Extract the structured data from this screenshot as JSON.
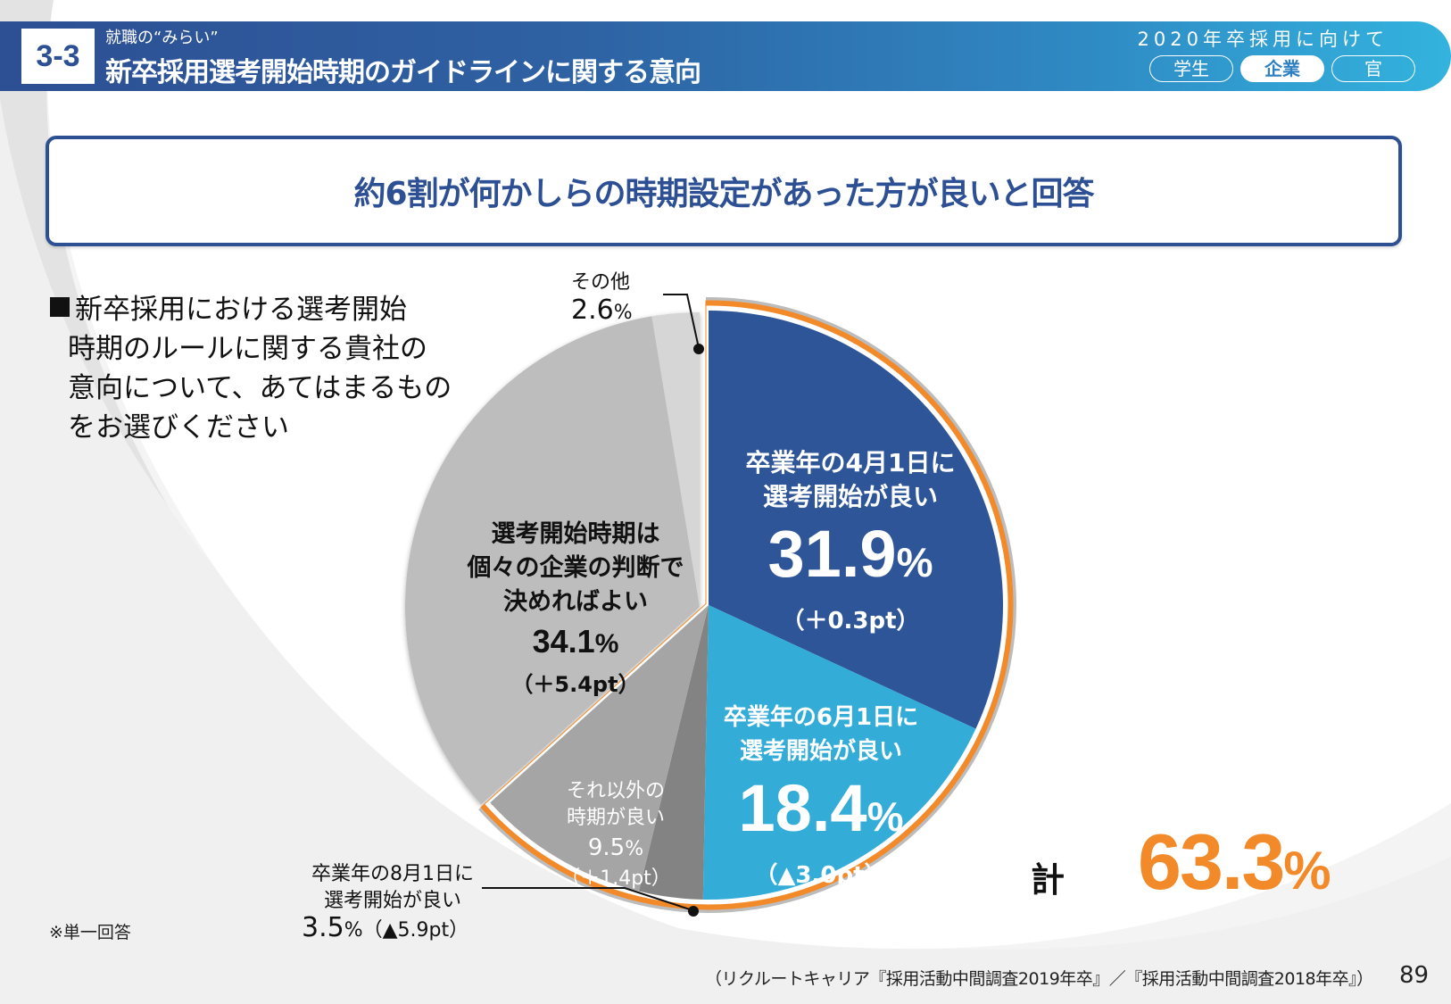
{
  "header": {
    "section_number": "3-3",
    "subtitle": "就職の“みらい”",
    "title": "新卒採用選考開始時期のガイドラインに関する意向",
    "right_caption": "2020年卒採用に向けて",
    "tabs": [
      {
        "label": "学生",
        "active": false
      },
      {
        "label": "企業",
        "active": true
      },
      {
        "label": "官",
        "active": false
      }
    ]
  },
  "headline": "約6割が何かしらの時期設定があった方が良いと回答",
  "question": {
    "lines": [
      "新卒採用における選考開始",
      "時期のルールに関する貴社の",
      "意向について、あてはまるもの",
      "をお選びください"
    ]
  },
  "note": "※単一回答",
  "total": {
    "label": "計",
    "value": "63.3",
    "unit": "%"
  },
  "source": "（リクルートキャリア『採用活動中間調査2019年卒』／『採用活動中間調査2018年卒』）",
  "page_number": "89",
  "colors": {
    "brand_blue": "#2d4f93",
    "accent_orange": "#f28a2a",
    "light_blue": "#33acd8"
  },
  "chart_data": {
    "type": "pie",
    "title": "新卒採用における選考開始時期のルールに関する貴社の意向",
    "start_angle": "12 o'clock",
    "direction": "clockwise",
    "highlight_group": {
      "label": "計",
      "total": 63.3,
      "slices": [
        0,
        1,
        2,
        3
      ]
    },
    "slices": [
      {
        "label_lines": [
          "卒業年の4月1日に",
          "選考開始が良い"
        ],
        "value": 31.9,
        "change": "（＋0.3pt）",
        "color": "#2e5598"
      },
      {
        "label_lines": [
          "卒業年の6月1日に",
          "選考開始が良い"
        ],
        "value": 18.4,
        "change": "（▲3.0pt）",
        "color": "#33acd8"
      },
      {
        "label_lines": [
          "卒業年の8月1日に",
          "選考開始が良い"
        ],
        "value": 3.5,
        "change": "（▲5.9pt）",
        "color": "#838383"
      },
      {
        "label_lines": [
          "それ以外の",
          "時期が良い"
        ],
        "value": 9.5,
        "change": "（＋1.4pt）",
        "color": "#a5a5a5"
      },
      {
        "label_lines": [
          "選考開始時期は",
          "個々の企業の判断で",
          "決めればよい"
        ],
        "value": 34.1,
        "change": "（＋5.4pt）",
        "color": "#bdbdbd"
      },
      {
        "label_lines": [
          "その他"
        ],
        "value": 2.6,
        "change": "",
        "color": "#d6d6d6"
      }
    ],
    "value_labels": [
      "31.9",
      "18.4",
      "3.5",
      "9.5",
      "34.1",
      "2.6"
    ],
    "unit": "%"
  }
}
